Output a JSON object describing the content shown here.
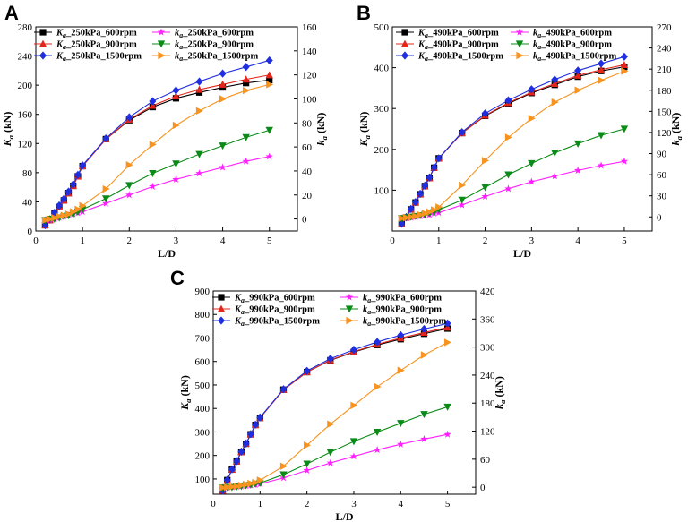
{
  "figure": {
    "panels": [
      "A",
      "B",
      "C"
    ],
    "colors": {
      "black": "#000000",
      "red": "#e4251b",
      "blue": "#1f2fe0",
      "magenta": "#ff1fff",
      "green": "#0a8a16",
      "orange": "#f7931e"
    }
  },
  "chart_data": [
    {
      "type": "line",
      "panel": "A",
      "title": "",
      "xlabel": "L/D",
      "ylabel_left_sym": "K",
      "ylabel_left_sub": "a",
      "ylabel_left_unit": " (kN)",
      "ylabel_right_sym": "k",
      "ylabel_right_sub": "a",
      "ylabel_right_unit": " (kN)",
      "xlim": [
        0,
        5.6
      ],
      "xticks": [
        0,
        1,
        2,
        3,
        4,
        5
      ],
      "ylim_left": [
        0,
        280
      ],
      "yticks_left": [
        0,
        40,
        80,
        120,
        160,
        200,
        240,
        280
      ],
      "ylim_right": [
        -10,
        160
      ],
      "yticks_right": [
        0,
        20,
        40,
        60,
        80,
        100,
        120,
        140,
        160
      ],
      "x": [
        0.2,
        0.3,
        0.4,
        0.5,
        0.6,
        0.7,
        0.8,
        0.9,
        1.0,
        1.5,
        2.0,
        2.5,
        3.0,
        3.5,
        4.0,
        4.5,
        5.0
      ],
      "series": [
        {
          "name": "_250kPa_600rpm",
          "sym": "K",
          "sub": "a",
          "axis": "left",
          "color": "#000000",
          "marker": "square",
          "values": [
            8,
            15,
            24,
            33,
            42,
            52,
            62,
            75,
            89,
            126,
            152,
            170,
            182,
            190,
            197,
            203,
            207
          ]
        },
        {
          "name": "_250kPa_900rpm",
          "sym": "K",
          "sub": "a",
          "axis": "left",
          "color": "#e4251b",
          "marker": "triangle-up",
          "values": [
            8,
            15,
            24,
            33,
            42,
            52,
            62,
            75,
            89,
            126,
            153,
            172,
            185,
            194,
            201,
            208,
            214
          ]
        },
        {
          "name": "_250kPa_1500rpm",
          "sym": "K",
          "sub": "a",
          "axis": "left",
          "color": "#1f2fe0",
          "marker": "diamond",
          "values": [
            8,
            16,
            25,
            35,
            44,
            54,
            64,
            77,
            90,
            127,
            156,
            178,
            193,
            205,
            216,
            225,
            234
          ]
        },
        {
          "name": "_250kPa_600rpm",
          "sym": "k",
          "sub": "a",
          "axis": "right",
          "color": "#ff1fff",
          "marker": "star",
          "values": [
            -1,
            -1,
            0,
            1,
            2,
            3,
            4,
            5,
            6,
            13,
            20,
            27,
            33,
            38,
            43,
            48,
            52
          ]
        },
        {
          "name": "_250kPa_900rpm",
          "sym": "k",
          "sub": "a",
          "axis": "right",
          "color": "#0a8a16",
          "marker": "triangle-down",
          "values": [
            -1,
            0,
            0,
            1,
            2,
            3,
            4,
            6,
            8,
            17,
            28,
            38,
            46,
            54,
            61,
            68,
            74
          ]
        },
        {
          "name": "_250kPa_1500rpm",
          "sym": "k",
          "sub": "a",
          "axis": "right",
          "color": "#f7931e",
          "marker": "triangle-right",
          "values": [
            -1,
            0,
            1,
            2,
            3,
            4,
            6,
            8,
            11,
            25,
            45,
            62,
            78,
            90,
            100,
            107,
            112
          ]
        }
      ]
    },
    {
      "type": "line",
      "panel": "B",
      "title": "",
      "xlabel": "L/D",
      "ylabel_left_sym": "K",
      "ylabel_left_sub": "a",
      "ylabel_left_unit": " (kN)",
      "ylabel_right_sym": "k",
      "ylabel_right_sub": "a",
      "ylabel_right_unit": " (kN)",
      "xlim": [
        0,
        5.6
      ],
      "xticks": [
        0,
        1,
        2,
        3,
        4,
        5
      ],
      "ylim_left": [
        0,
        500
      ],
      "yticks_left": [
        100,
        200,
        300,
        400,
        500
      ],
      "ylim_right": [
        -20,
        270
      ],
      "yticks_right": [
        0,
        30,
        60,
        90,
        120,
        150,
        180,
        210,
        240,
        270
      ],
      "x": [
        0.2,
        0.3,
        0.4,
        0.5,
        0.6,
        0.7,
        0.8,
        0.9,
        1.0,
        1.5,
        2.0,
        2.5,
        3.0,
        3.5,
        4.0,
        4.5,
        5.0
      ],
      "series": [
        {
          "name": "_490kPa_600rpm",
          "sym": "K",
          "sub": "a",
          "axis": "left",
          "color": "#000000",
          "marker": "square",
          "values": [
            18,
            33,
            53,
            70,
            90,
            110,
            130,
            155,
            178,
            240,
            282,
            312,
            338,
            358,
            378,
            392,
            402
          ]
        },
        {
          "name": "_490kPa_900rpm",
          "sym": "K",
          "sub": "a",
          "axis": "left",
          "color": "#e4251b",
          "marker": "triangle-up",
          "values": [
            18,
            33,
            53,
            70,
            90,
            110,
            130,
            155,
            178,
            240,
            283,
            314,
            340,
            361,
            381,
            395,
            407
          ]
        },
        {
          "name": "_490kPa_1500rpm",
          "sym": "K",
          "sub": "a",
          "axis": "left",
          "color": "#1f2fe0",
          "marker": "diamond",
          "values": [
            18,
            34,
            54,
            71,
            91,
            111,
            131,
            156,
            178,
            242,
            288,
            320,
            347,
            371,
            393,
            410,
            427
          ]
        },
        {
          "name": "_490kPa_600rpm",
          "sym": "k",
          "sub": "a",
          "axis": "right",
          "color": "#ff1fff",
          "marker": "star",
          "values": [
            -2,
            -2,
            -1,
            0,
            1,
            2,
            3,
            5,
            6,
            17,
            29,
            40,
            50,
            58,
            66,
            73,
            79
          ]
        },
        {
          "name": "_490kPa_900rpm",
          "sym": "k",
          "sub": "a",
          "axis": "right",
          "color": "#0a8a16",
          "marker": "triangle-down",
          "values": [
            -2,
            -1,
            0,
            1,
            2,
            3,
            5,
            7,
            10,
            24,
            42,
            60,
            76,
            91,
            104,
            116,
            125
          ]
        },
        {
          "name": "_490kPa_1500rpm",
          "sym": "k",
          "sub": "a",
          "axis": "right",
          "color": "#f7931e",
          "marker": "triangle-right",
          "values": [
            -2,
            -1,
            0,
            1,
            3,
            5,
            7,
            10,
            14,
            45,
            80,
            113,
            140,
            163,
            180,
            194,
            207
          ]
        }
      ]
    },
    {
      "type": "line",
      "panel": "C",
      "title": "",
      "xlabel": "L/D",
      "ylabel_left_sym": "K",
      "ylabel_left_sub": "a",
      "ylabel_left_unit": " (kN)",
      "ylabel_right_sym": "k",
      "ylabel_right_sub": "a",
      "ylabel_right_unit": " (kN)",
      "xlim": [
        0,
        5.6
      ],
      "xticks": [
        0,
        1,
        2,
        3,
        4,
        5
      ],
      "ylim_left": [
        35,
        900
      ],
      "yticks_left": [
        100,
        200,
        300,
        400,
        500,
        600,
        700,
        800,
        900
      ],
      "ylim_right": [
        -15,
        420
      ],
      "yticks_right": [
        0,
        60,
        120,
        180,
        240,
        300,
        360,
        420
      ],
      "x": [
        0.2,
        0.3,
        0.4,
        0.5,
        0.6,
        0.7,
        0.8,
        0.9,
        1.0,
        1.5,
        2.0,
        2.5,
        3.0,
        3.5,
        4.0,
        4.5,
        5.0
      ],
      "series": [
        {
          "name": "_990kPa_600rpm",
          "sym": "K",
          "sub": "a",
          "axis": "left",
          "color": "#000000",
          "marker": "square",
          "values": [
            50,
            95,
            140,
            175,
            215,
            250,
            290,
            330,
            360,
            480,
            555,
            605,
            640,
            670,
            695,
            718,
            740
          ]
        },
        {
          "name": "_990kPa_900rpm",
          "sym": "K",
          "sub": "a",
          "axis": "left",
          "color": "#e4251b",
          "marker": "triangle-up",
          "values": [
            50,
            95,
            140,
            175,
            215,
            250,
            290,
            330,
            360,
            480,
            555,
            606,
            642,
            673,
            700,
            723,
            745
          ]
        },
        {
          "name": "_990kPa_1500rpm",
          "sym": "K",
          "sub": "a",
          "axis": "left",
          "color": "#1f2fe0",
          "marker": "diamond",
          "values": [
            50,
            96,
            141,
            176,
            216,
            251,
            291,
            331,
            362,
            482,
            560,
            612,
            650,
            683,
            712,
            738,
            762
          ]
        },
        {
          "name": "_990kPa_600rpm",
          "sym": "k",
          "sub": "a",
          "axis": "right",
          "color": "#ff1fff",
          "marker": "star",
          "values": [
            -1,
            -1,
            0,
            1,
            2,
            3,
            4,
            5,
            7,
            20,
            36,
            52,
            66,
            80,
            92,
            103,
            113
          ]
        },
        {
          "name": "_990kPa_900rpm",
          "sym": "k",
          "sub": "a",
          "axis": "right",
          "color": "#0a8a16",
          "marker": "triangle-down",
          "values": [
            -1,
            0,
            0,
            1,
            2,
            4,
            5,
            7,
            9,
            27,
            50,
            75,
            98,
            118,
            137,
            156,
            172
          ]
        },
        {
          "name": "_990kPa_1500rpm",
          "sym": "k",
          "sub": "a",
          "axis": "right",
          "color": "#f7931e",
          "marker": "triangle-right",
          "values": [
            -1,
            0,
            1,
            2,
            4,
            6,
            8,
            10,
            15,
            45,
            90,
            135,
            175,
            215,
            250,
            283,
            310
          ]
        }
      ]
    }
  ]
}
